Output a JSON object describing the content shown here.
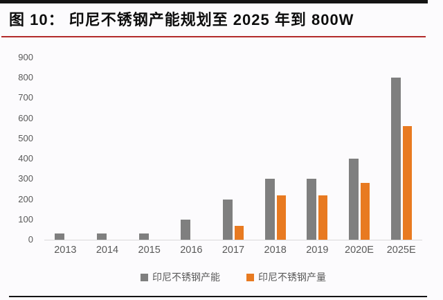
{
  "header": {
    "title": "图 10：  印尼不锈钢产能规划至 2025 年到 800W"
  },
  "chart_data": {
    "type": "bar",
    "title": "图 10：  印尼不锈钢产能规划至 2025 年到 800W",
    "categories": [
      "2013",
      "2014",
      "2015",
      "2016",
      "2017",
      "2018",
      "2019",
      "2020E",
      "2025E"
    ],
    "series": [
      {
        "name": "印尼不锈钢产能",
        "color": "#7f7f7f",
        "values": [
          30,
          30,
          30,
          100,
          200,
          300,
          300,
          400,
          800
        ]
      },
      {
        "name": "印尼不锈钢产量",
        "color": "#e87a21",
        "values": [
          null,
          null,
          null,
          null,
          70,
          220,
          220,
          280,
          560
        ]
      }
    ],
    "xlabel": "",
    "ylabel": "",
    "ylim": [
      0,
      900
    ],
    "ytick_step": 100,
    "grid": false,
    "legend_position": "bottom",
    "axis_color": "#d9d9d9",
    "tick_label_color": "#595959"
  },
  "decorations": {
    "top_bar_color": "#141414",
    "red_line_color": "#b22a2a",
    "bottom_line_color": "#141414"
  }
}
